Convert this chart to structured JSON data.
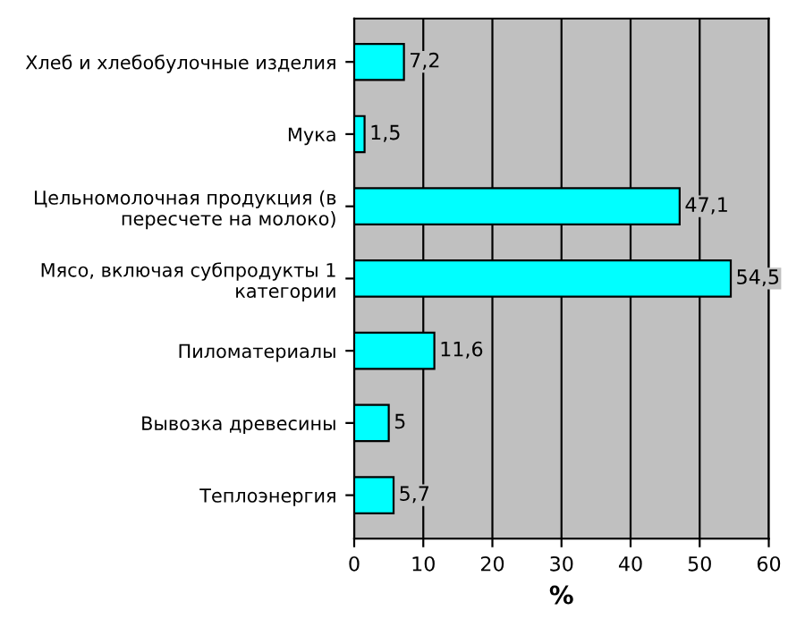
{
  "chart_data": {
    "type": "bar",
    "orientation": "horizontal",
    "categories": [
      "Хлеб и хлебобулочные изделия",
      "Мука",
      "Цельномолочная продукция (в\nпересчете на молоко)",
      "Мясо, включая субпродукты 1\nкатегории",
      "Пиломатериалы",
      "Вывозка древесины",
      "Теплоэнергия"
    ],
    "values": [
      7.2,
      1.5,
      47.1,
      54.5,
      11.6,
      5,
      5.7
    ],
    "value_labels": [
      "7,2",
      "1,5",
      "47,1",
      "54,5",
      "11,6",
      "5",
      "5,7"
    ],
    "color": "#00ffff",
    "xlabel": "%",
    "xlim": [
      0,
      60
    ],
    "xticks": [
      0,
      10,
      20,
      30,
      40,
      50,
      60
    ],
    "grid": "x",
    "legend": false
  }
}
